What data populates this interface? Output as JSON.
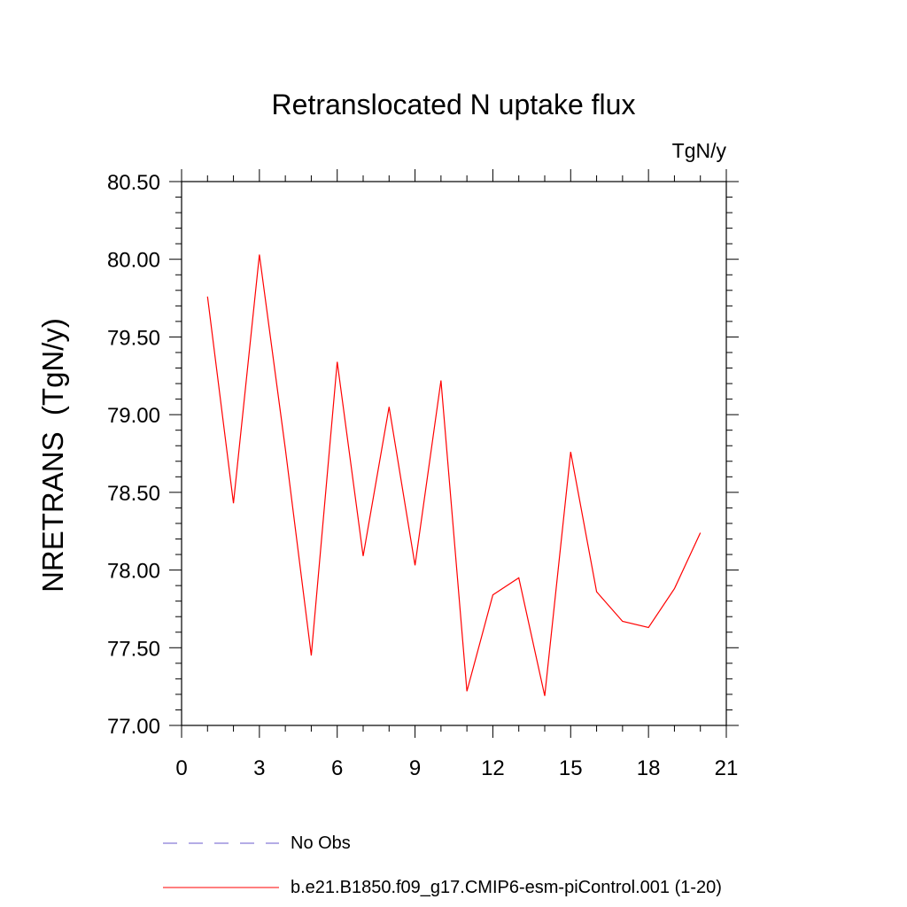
{
  "chart_data": {
    "type": "line",
    "title": "Retranslocated N uptake flux",
    "units": "TgN/y",
    "ylabel": "NRETRANS  (TgN/y)",
    "xlabel": "",
    "xlim": [
      0,
      21
    ],
    "ylim": [
      77.0,
      80.5
    ],
    "x_ticks": [
      0,
      3,
      6,
      9,
      12,
      15,
      18,
      21
    ],
    "x_tick_labels": [
      "0",
      "3",
      "6",
      "9",
      "12",
      "15",
      "18",
      "21"
    ],
    "y_ticks": [
      77.0,
      77.5,
      78.0,
      78.5,
      79.0,
      79.5,
      80.0,
      80.5
    ],
    "y_tick_labels": [
      "77.00",
      "77.50",
      "78.00",
      "78.50",
      "79.00",
      "79.50",
      "80.00",
      "80.50"
    ],
    "grid": false,
    "legend_placement": "bottom",
    "series": [
      {
        "name": "b.e21.B1850.f09_g17.CMIP6-esm-piControl.001 (1-20)",
        "color": "#ff0000",
        "style": "solid",
        "x": [
          1,
          2,
          3,
          4,
          5,
          6,
          7,
          8,
          9,
          10,
          11,
          12,
          13,
          14,
          15,
          16,
          17,
          18,
          19,
          20
        ],
        "values": [
          79.76,
          78.43,
          80.03,
          78.78,
          77.45,
          79.34,
          78.09,
          79.05,
          78.03,
          79.22,
          77.22,
          77.84,
          77.95,
          77.19,
          78.76,
          77.86,
          77.67,
          77.63,
          77.88,
          78.24
        ]
      }
    ],
    "legend": [
      {
        "label": "No Obs",
        "color": "#6a5acd",
        "style": "dashed"
      },
      {
        "label": "b.e21.B1850.f09_g17.CMIP6-esm-piControl.001 (1-20)",
        "color": "#ff0000",
        "style": "solid"
      }
    ]
  }
}
